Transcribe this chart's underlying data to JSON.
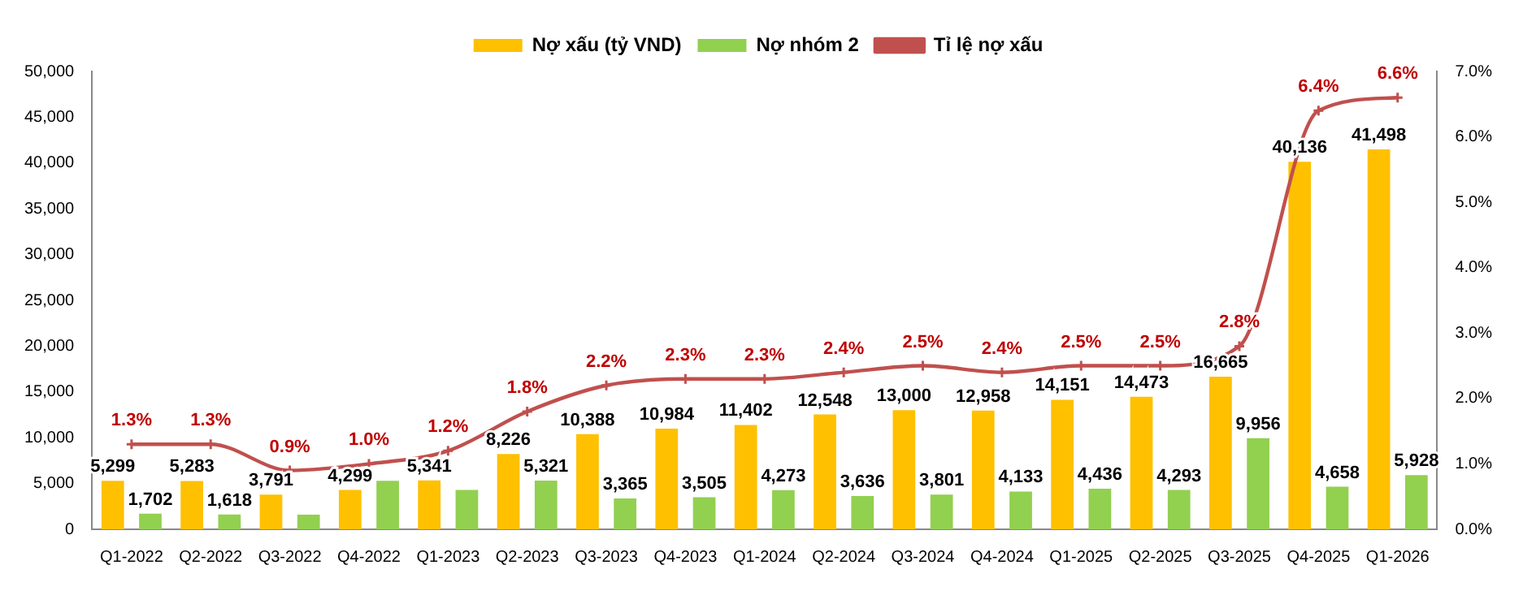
{
  "chart_data": {
    "type": "bar",
    "categories": [
      "Q1-2022",
      "Q2-2022",
      "Q3-2022",
      "Q4-2022",
      "Q1-2023",
      "Q2-2023",
      "Q3-2023",
      "Q4-2023",
      "Q1-2024",
      "Q2-2024",
      "Q3-2024",
      "Q4-2024",
      "Q1-2025",
      "Q2-2025",
      "Q3-2025",
      "Q4-2025",
      "Q1-2026"
    ],
    "series": [
      {
        "name": "Nợ xấu (tỷ VND)",
        "color": "#ffc000",
        "values": [
          5299,
          5283,
          3791,
          4299,
          5341,
          8226,
          10388,
          10984,
          11402,
          12548,
          13000,
          12958,
          14151,
          14473,
          16665,
          40136,
          41498
        ],
        "value_labels": [
          "5,299",
          "5,283",
          "3,791",
          "4,299",
          "5,341",
          "8,226",
          "10,388",
          "10,984",
          "11,402",
          "12,548",
          "13,000",
          "12,958",
          "14,151",
          "14,473",
          "16,665",
          "40,136",
          "41,498"
        ]
      },
      {
        "name": "Nợ nhóm 2",
        "color": "#92d050",
        "values": [
          1702,
          1618,
          1600,
          5300,
          4300,
          5321,
          3365,
          3505,
          4273,
          3636,
          3801,
          4133,
          4436,
          4293,
          9956,
          4658,
          5928
        ],
        "value_labels": [
          "1,702",
          "1,618",
          null,
          null,
          null,
          "5,321",
          "3,365",
          "3,505",
          "4,273",
          "3,636",
          "3,801",
          "4,133",
          "4,436",
          "4,293",
          "9,956",
          "4,658",
          "5,928"
        ]
      },
      {
        "name": "Tỉ lệ nợ xấu",
        "type": "line",
        "axis": "y2",
        "color": "#c0504d",
        "values": [
          1.3,
          1.3,
          0.9,
          1.0,
          1.2,
          1.8,
          2.2,
          2.3,
          2.3,
          2.4,
          2.5,
          2.4,
          2.5,
          2.5,
          2.8,
          6.4,
          6.6
        ],
        "value_labels": [
          "1.3%",
          "1.3%",
          "0.9%",
          "1.0%",
          "1.2%",
          "1.8%",
          "2.2%",
          "2.3%",
          "2.3%",
          "2.4%",
          "2.5%",
          "2.4%",
          "2.5%",
          "2.5%",
          "2.8%",
          "6.4%",
          "6.6%"
        ]
      }
    ],
    "ylim": [
      0,
      50000
    ],
    "yticks": [
      {
        "value": 0,
        "label": "0"
      },
      {
        "value": 5000,
        "label": "5,000"
      },
      {
        "value": 10000,
        "label": "10,000"
      },
      {
        "value": 15000,
        "label": "15,000"
      },
      {
        "value": 20000,
        "label": "20,000"
      },
      {
        "value": 25000,
        "label": "25,000"
      },
      {
        "value": 30000,
        "label": "30,000"
      },
      {
        "value": 35000,
        "label": "35,000"
      },
      {
        "value": 40000,
        "label": "40,000"
      },
      {
        "value": 45000,
        "label": "45,000"
      },
      {
        "value": 50000,
        "label": "50,000"
      }
    ],
    "y2lim": [
      0,
      7
    ],
    "y2ticks": [
      {
        "value": 0,
        "label": "0.0%"
      },
      {
        "value": 1,
        "label": "1.0%"
      },
      {
        "value": 2,
        "label": "2.0%"
      },
      {
        "value": 3,
        "label": "3.0%"
      },
      {
        "value": 4,
        "label": "4.0%"
      },
      {
        "value": 5,
        "label": "5.0%"
      },
      {
        "value": 6,
        "label": "6.0%"
      },
      {
        "value": 7,
        "label": "7.0%"
      }
    ],
    "grid": false,
    "legend": "top",
    "marker": "cross",
    "line_style": "solid"
  }
}
